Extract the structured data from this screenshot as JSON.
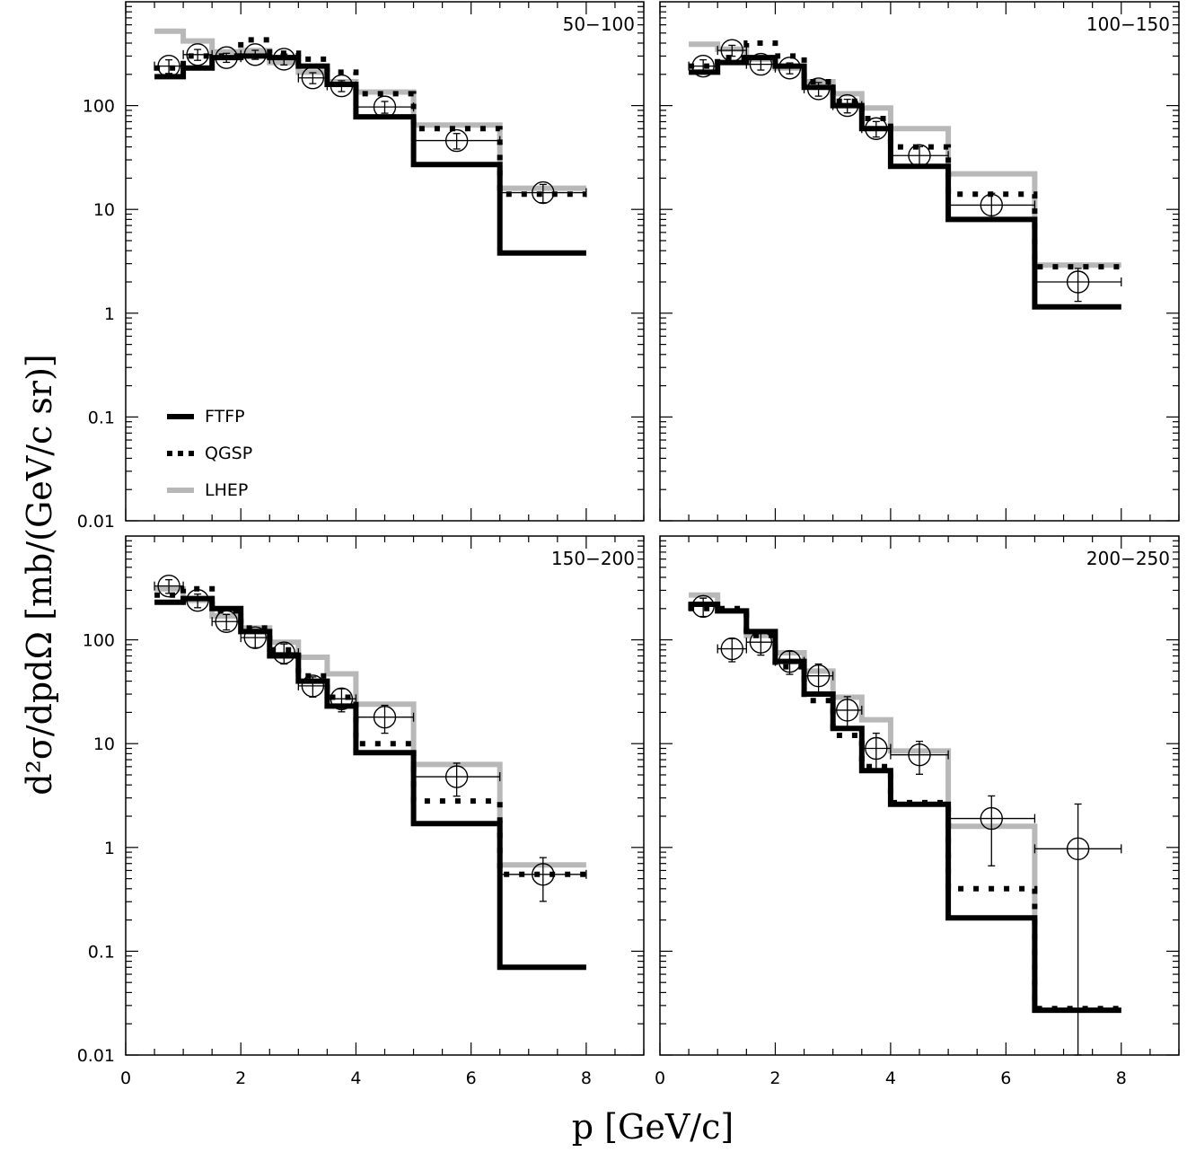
{
  "chart_data": {
    "type": "line",
    "ylabel": "d²σ/dpdΩ [mb/(GeV/c sr)]",
    "xlabel": "p [GeV/c]",
    "xlim": [
      0,
      9
    ],
    "ylim": [
      0.01,
      1000
    ],
    "yscale": "log",
    "x_ticks": [
      "0",
      "2",
      "4",
      "6",
      "8"
    ],
    "y_ticks": [
      "0.01",
      "0.1",
      "1",
      "10",
      "100"
    ],
    "grid": false,
    "legend_position": "bottom-left of top-left panel",
    "colors": {
      "FTFP": "#000000",
      "QGSP": "#000000",
      "LHEP": "#b8b8b8",
      "data": "#000000"
    },
    "legend": [
      "FTFP",
      "QGSP",
      "LHEP"
    ],
    "bin_edges": [
      0.5,
      1.0,
      1.5,
      2.0,
      2.5,
      3.0,
      3.5,
      4.0,
      5.0,
      6.5,
      8.0
    ],
    "panels": [
      {
        "label": "50−100",
        "series": [
          {
            "name": "FTFP",
            "values": [
              190,
              230,
              290,
              300,
              290,
              240,
              160,
              78,
              27,
              3.8
            ]
          },
          {
            "name": "QGSP",
            "values": [
              230,
              300,
              300,
              430,
              320,
              280,
              210,
              130,
              60,
              14
            ]
          },
          {
            "name": "LHEP",
            "values": [
              520,
              420,
              330,
              340,
              260,
              210,
              170,
              135,
              65,
              16
            ]
          }
        ],
        "data_points": {
          "x": [
            0.75,
            1.25,
            1.75,
            2.25,
            2.75,
            3.25,
            3.75,
            4.5,
            5.75,
            7.25
          ],
          "y": [
            240,
            310,
            290,
            310,
            280,
            185,
            155,
            97,
            46,
            14.5
          ],
          "xerr": [
            0.25,
            0.25,
            0.25,
            0.25,
            0.25,
            0.25,
            0.25,
            0.5,
            0.75,
            0.75
          ],
          "yerr_frac": [
            0.15,
            0.12,
            0.1,
            0.1,
            0.12,
            0.12,
            0.12,
            0.13,
            0.17,
            0.2
          ]
        }
      },
      {
        "label": "100−150",
        "series": [
          {
            "name": "FTFP",
            "values": [
              210,
              260,
              290,
              240,
              150,
              100,
              60,
              26,
              8,
              1.15
            ]
          },
          {
            "name": "QGSP",
            "values": [
              240,
              290,
              400,
              300,
              170,
              110,
              75,
              40,
              14,
              2.8
            ]
          },
          {
            "name": "LHEP",
            "values": [
              390,
              350,
              280,
              230,
              170,
              130,
              95,
              60,
              22,
              2.9
            ]
          }
        ],
        "data_points": {
          "x": [
            0.75,
            1.25,
            1.75,
            2.25,
            2.75,
            3.25,
            3.75,
            4.5,
            5.75,
            7.25
          ],
          "y": [
            240,
            340,
            250,
            230,
            145,
            100,
            60,
            33,
            11,
            2.0
          ],
          "xerr": [
            0.25,
            0.25,
            0.25,
            0.25,
            0.25,
            0.25,
            0.25,
            0.5,
            0.75,
            0.75
          ],
          "yerr_frac": [
            0.15,
            0.12,
            0.12,
            0.12,
            0.15,
            0.15,
            0.17,
            0.22,
            0.3,
            0.35
          ]
        }
      },
      {
        "label": "150−200",
        "series": [
          {
            "name": "FTFP",
            "values": [
              230,
              250,
              200,
              120,
              70,
              40,
              23,
              8.2,
              1.7,
              0.07
            ]
          },
          {
            "name": "QGSP",
            "values": [
              270,
              310,
              190,
              130,
              80,
              45,
              28,
              10,
              2.8,
              0.55
            ]
          },
          {
            "name": "LHEP",
            "values": [
              310,
              240,
              170,
              130,
              95,
              68,
              47,
              24,
              6.3,
              0.68
            ]
          }
        ],
        "data_points": {
          "x": [
            0.75,
            1.25,
            1.75,
            2.25,
            2.75,
            3.25,
            3.75,
            4.5,
            5.75,
            7.25
          ],
          "y": [
            330,
            240,
            150,
            105,
            75,
            36,
            27,
            18,
            4.8,
            0.55
          ],
          "xerr": [
            0.25,
            0.25,
            0.25,
            0.25,
            0.25,
            0.25,
            0.25,
            0.5,
            0.75,
            0.75
          ],
          "yerr_frac": [
            0.15,
            0.15,
            0.17,
            0.2,
            0.22,
            0.22,
            0.25,
            0.3,
            0.35,
            0.45
          ]
        }
      },
      {
        "label": "200−250",
        "series": [
          {
            "name": "FTFP",
            "values": [
              220,
              190,
              120,
              62,
              30,
              14,
              5.5,
              2.6,
              0.21,
              0.027
            ]
          },
          {
            "name": "QGSP",
            "values": [
              200,
              200,
              110,
              55,
              26,
              12,
              6,
              2.7,
              0.4,
              0.028
            ]
          },
          {
            "name": "LHEP",
            "values": [
              270,
              190,
              110,
              75,
              50,
              28,
              17,
              8.5,
              1.6,
              0.027
            ]
          }
        ],
        "data_points": {
          "x": [
            0.75,
            1.25,
            1.75,
            2.25,
            2.75,
            3.25,
            3.75,
            4.5,
            5.75,
            7.25
          ],
          "y": [
            210,
            82,
            95,
            62,
            45,
            21,
            9,
            7.8,
            1.9,
            0.97
          ],
          "xerr": [
            0.25,
            0.25,
            0.25,
            0.25,
            0.25,
            0.25,
            0.25,
            0.5,
            0.75,
            0.75
          ],
          "yerr_frac": [
            0.2,
            0.25,
            0.25,
            0.25,
            0.3,
            0.35,
            0.4,
            0.35,
            0.65,
            1.7
          ]
        }
      }
    ]
  }
}
